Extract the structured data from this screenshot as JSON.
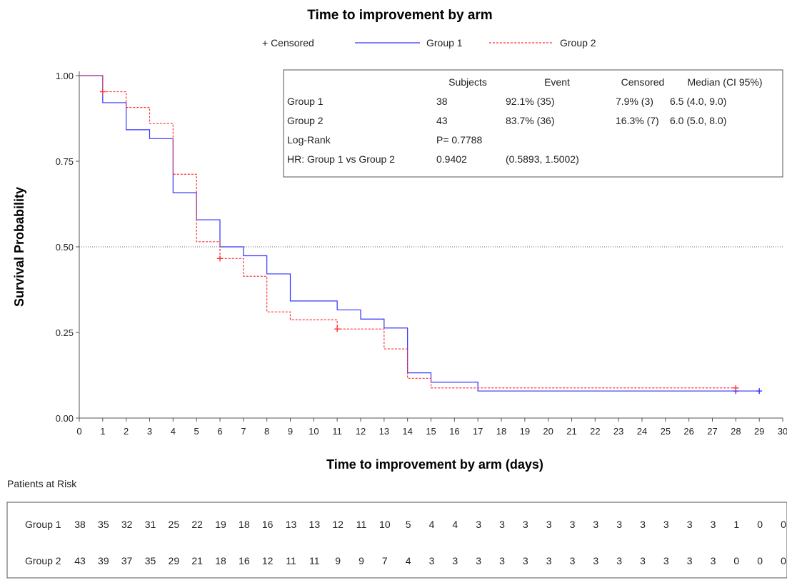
{
  "chart_data": {
    "type": "line",
    "title": "Time to improvement by arm",
    "xlabel": "Time to improvement by arm (days)",
    "ylabel": "Survival Probability",
    "xlim": [
      0,
      30
    ],
    "ylim": [
      0,
      1
    ],
    "x_ticks": [
      "0",
      "1",
      "2",
      "3",
      "4",
      "5",
      "6",
      "7",
      "8",
      "9",
      "10",
      "11",
      "12",
      "13",
      "14",
      "15",
      "16",
      "17",
      "18",
      "19",
      "20",
      "21",
      "22",
      "23",
      "24",
      "25",
      "26",
      "27",
      "28",
      "29",
      "30"
    ],
    "y_ticks": [
      "0.00",
      "0.25",
      "0.50",
      "0.75",
      "1.00"
    ],
    "reference_line_y": 0.5,
    "legend": {
      "censored_label": "+ Censored",
      "entries": [
        {
          "name": "Group 1",
          "color": "#3333ff",
          "style": "solid"
        },
        {
          "name": "Group 2",
          "color": "#ff3333",
          "style": "dashed"
        }
      ]
    },
    "series": [
      {
        "name": "Group 1",
        "color": "#3333ff",
        "steps": [
          [
            0,
            1.0
          ],
          [
            1,
            0.921
          ],
          [
            2,
            0.842
          ],
          [
            3,
            0.816
          ],
          [
            4,
            0.658
          ],
          [
            5,
            0.579
          ],
          [
            6,
            0.5
          ],
          [
            7,
            0.474
          ],
          [
            8,
            0.421
          ],
          [
            9,
            0.342
          ],
          [
            11,
            0.316
          ],
          [
            12,
            0.289
          ],
          [
            13,
            0.263
          ],
          [
            14,
            0.132
          ],
          [
            15,
            0.105
          ],
          [
            17,
            0.079
          ]
        ],
        "x_end": 29,
        "censored": [
          [
            28,
            0.079
          ],
          [
            29,
            0.079
          ]
        ]
      },
      {
        "name": "Group 2",
        "color": "#ff3333",
        "steps": [
          [
            0,
            1.0
          ],
          [
            1,
            0.953
          ],
          [
            2,
            0.907
          ],
          [
            3,
            0.86
          ],
          [
            4,
            0.712
          ],
          [
            5,
            0.515
          ],
          [
            6,
            0.466
          ],
          [
            7,
            0.414
          ],
          [
            8,
            0.31
          ],
          [
            9,
            0.287
          ],
          [
            11,
            0.26
          ],
          [
            13,
            0.202
          ],
          [
            14,
            0.116
          ],
          [
            15,
            0.088
          ]
        ],
        "x_end": 28,
        "censored": [
          [
            1,
            0.953
          ],
          [
            6,
            0.466
          ],
          [
            11,
            0.26
          ],
          [
            28,
            0.088
          ]
        ]
      }
    ],
    "stats_table": {
      "headers": [
        "",
        "Subjects",
        "Event",
        "Censored",
        "Median (CI 95%)"
      ],
      "rows": [
        [
          "Group 1",
          "38",
          "92.1% (35)",
          "7.9% (3)",
          "6.5 (4.0, 9.0)"
        ],
        [
          "Group 2",
          "43",
          "83.7% (36)",
          "16.3% (7)",
          "6.0 (5.0, 8.0)"
        ],
        [
          "Log-Rank",
          "P= 0.7788",
          "",
          "",
          ""
        ],
        [
          "HR: Group 1 vs Group 2",
          "0.9402",
          "(0.5893, 1.5002)",
          "",
          ""
        ]
      ]
    },
    "risk_table": {
      "title": "Patients at Risk",
      "rows": [
        {
          "label": "Group 1",
          "values": [
            "38",
            "35",
            "32",
            "31",
            "25",
            "22",
            "19",
            "18",
            "16",
            "13",
            "13",
            "12",
            "11",
            "10",
            "5",
            "4",
            "4",
            "3",
            "3",
            "3",
            "3",
            "3",
            "3",
            "3",
            "3",
            "3",
            "3",
            "3",
            "1",
            "0",
            "0"
          ]
        },
        {
          "label": "Group 2",
          "values": [
            "43",
            "39",
            "37",
            "35",
            "29",
            "21",
            "18",
            "16",
            "12",
            "11",
            "11",
            "9",
            "9",
            "7",
            "4",
            "3",
            "3",
            "3",
            "3",
            "3",
            "3",
            "3",
            "3",
            "3",
            "3",
            "3",
            "3",
            "3",
            "0",
            "0",
            "0"
          ]
        }
      ]
    }
  }
}
